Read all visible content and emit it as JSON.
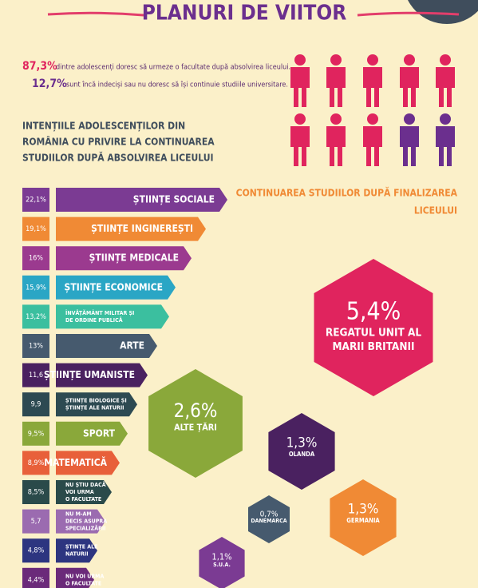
{
  "header": {
    "title": "PLANURI DE VIITOR"
  },
  "stats": [
    {
      "value": "87,3%",
      "text": "dintre adolescenți doresc să urmeze o facultate după absolvirea liceului."
    },
    {
      "value": "12,7%",
      "text": "sunt încă indeciși sau nu doresc să își continuie studiile universitare."
    }
  ],
  "intentions": {
    "title": [
      "INTENȚIILE ADOLESCENȚILOR DIN",
      "ROMÂNIA CU PRIVIRE LA CONTINUAREA",
      "STUDIILOR DUPĂ ABSOLVIREA LICEULUI"
    ],
    "rows": [
      {
        "value": "22,1%",
        "label": [
          "ȘTIINȚE SOCIALE"
        ]
      },
      {
        "value": "19,1%",
        "label": [
          "ȘTIINȚE INGINEREȘTI"
        ]
      },
      {
        "value": "16%",
        "label": [
          "ȘTIINȚE MEDICALE"
        ]
      },
      {
        "value": "15,9%",
        "label": [
          "ȘTIINȚE ECONOMICE"
        ]
      },
      {
        "value": "13,2%",
        "label": [
          "ÎNVĂȚĂMÂNT MILITAR ȘI",
          "DE ORDINE PUBLICĂ"
        ]
      },
      {
        "value": "13%",
        "label": [
          "ARTE"
        ]
      },
      {
        "value": "11,6",
        "label": [
          "ȘTIINȚE UMANISTE"
        ]
      },
      {
        "value": "9,9",
        "label": [
          "ȘTIINȚE BIOLOGICE ȘI",
          "ȘTIINȚE ALE NATURII"
        ]
      },
      {
        "value": "9,5%",
        "label": [
          "SPORT"
        ]
      },
      {
        "value": "8,9%",
        "label": [
          "MATEMATICĂ"
        ]
      },
      {
        "value": "8,5%",
        "label": [
          "NU ȘTIU DACĂ",
          "VOI URMA",
          "O FACULTATE"
        ]
      },
      {
        "value": "5,7",
        "label": [
          "NU M-AM",
          "DECIS ASUPRA",
          "SPECIALIZĂRII"
        ]
      },
      {
        "value": "4,8%",
        "label": [
          "ȘTINȚE ALE",
          "NATURII"
        ]
      },
      {
        "value": "4,4%",
        "label": [
          "NU VOI URMA",
          "O FACULTATE"
        ]
      }
    ]
  },
  "abroad": {
    "title": [
      "CONTINUAREA STUDIILOR DUPĂ  FINALIZAREA",
      "LICEULUI"
    ],
    "countries": [
      {
        "value": "5,4%",
        "name": [
          "REGATUL UNIT AL",
          "MARII BRITANII"
        ]
      },
      {
        "value": "2,6%",
        "name": [
          "ALTE ȚĂRI"
        ]
      },
      {
        "value": "1,3%",
        "name": [
          "OLANDA"
        ]
      },
      {
        "value": "1,3%",
        "name": [
          "GERMANIA"
        ]
      },
      {
        "value": "0,7%",
        "name": [
          "DANEMARCA"
        ]
      },
      {
        "value": "1,1%",
        "name": [
          "S.U.A."
        ]
      }
    ]
  }
}
